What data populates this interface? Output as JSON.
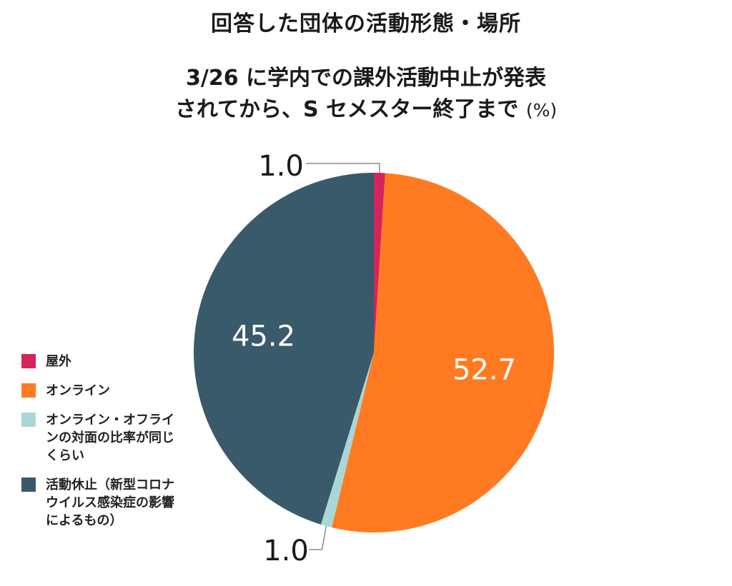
{
  "title": "回答した団体の活動形態・場所",
  "subtitle_line1": "3/26  に学内での課外活動中止が発表",
  "subtitle_line2": "されてから、S セメスター終了まで",
  "unit": "(%)",
  "colors": {
    "outdoor": "#d3245c",
    "online": "#ff7a20",
    "mixed": "#a9d6d6",
    "suspended": "#395a6b"
  },
  "legend": [
    {
      "label": "屋外",
      "color": "#d3245c"
    },
    {
      "label": "オンライン",
      "color": "#ff7a20"
    },
    {
      "label": "オンライン・オフラインの対面の比率が同じくらい",
      "color": "#a9d6d6"
    },
    {
      "label": "活動休止（新型コロナウイルス感染症の影響によるもの）",
      "color": "#395a6b"
    }
  ],
  "chart_data": {
    "type": "pie",
    "title": "回答した団体の活動形態・場所",
    "categories": [
      "屋外",
      "オンライン",
      "オンライン・オフラインの対面の比率が同じくらい",
      "活動休止（新型コロナウイルス感染症の影響によるもの）"
    ],
    "values": [
      1.0,
      52.7,
      1.0,
      45.2
    ],
    "value_labels": [
      "1.0",
      "52.7",
      "1.0",
      "45.2"
    ],
    "start": "top",
    "direction": "clockwise",
    "legend_position": "left"
  }
}
